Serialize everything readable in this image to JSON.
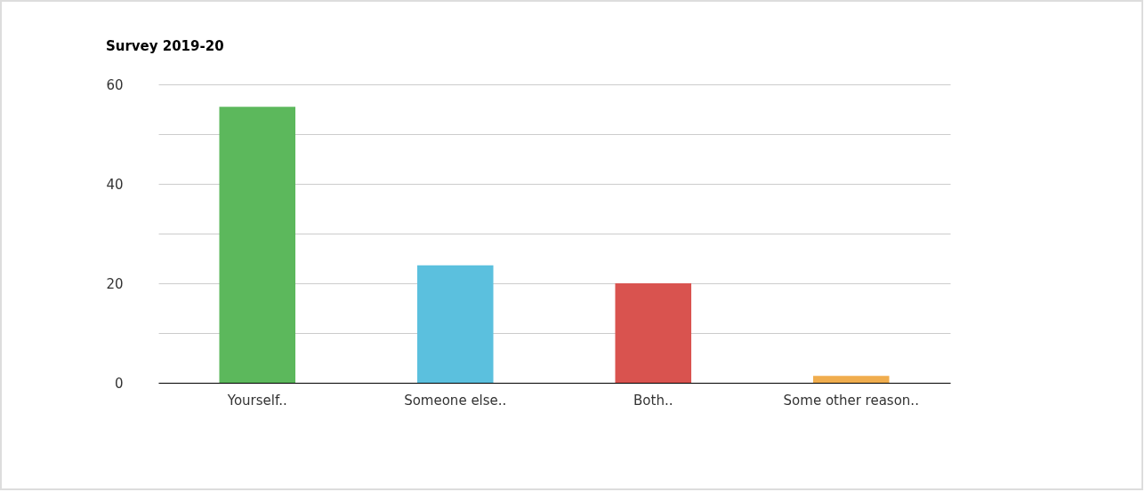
{
  "chart_data": {
    "type": "bar",
    "title": "Survey 2019-20",
    "categories": [
      "Yourself..",
      "Someone else..",
      "Both..",
      "Some other reason.."
    ],
    "values": [
      55.5,
      23.6,
      20,
      1.4
    ],
    "colors": [
      "#5cb85c",
      "#5bc0de",
      "#d9534f",
      "#f0ad4e"
    ],
    "ylim": [
      0,
      60
    ],
    "yticks": [
      0,
      {
        "value": 10,
        "label": null
      },
      20,
      {
        "value": 30,
        "label": null
      },
      40,
      {
        "value": 50,
        "label": null
      },
      60
    ],
    "grid": true,
    "legend": false
  }
}
